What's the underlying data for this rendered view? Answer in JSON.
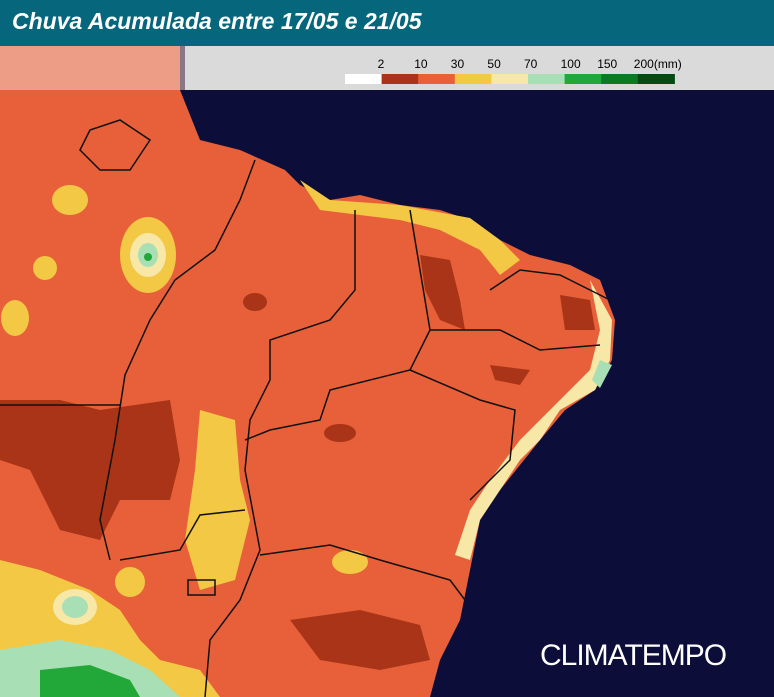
{
  "header": {
    "title": "Chuva Acumulada entre 17/05 e 21/05"
  },
  "legend": {
    "colors": [
      "#ffffff",
      "#a93418",
      "#e8603a",
      "#f2c844",
      "#f8e8a8",
      "#a9dfb4",
      "#22a838",
      "#0c7a22",
      "#054a12"
    ],
    "labels": [
      "2",
      "10",
      "30",
      "50",
      "70",
      "100",
      "150",
      "200(mm)"
    ]
  },
  "watermark": "CLIMATEMPO"
}
